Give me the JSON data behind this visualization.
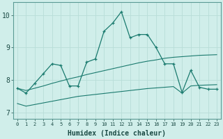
{
  "x": [
    0,
    1,
    2,
    3,
    4,
    5,
    6,
    7,
    8,
    9,
    10,
    11,
    12,
    13,
    14,
    15,
    16,
    17,
    18,
    19,
    20,
    21,
    22,
    23
  ],
  "y_main": [
    7.75,
    7.6,
    7.9,
    8.2,
    8.5,
    8.45,
    7.82,
    7.82,
    8.55,
    8.65,
    9.5,
    9.75,
    10.1,
    9.3,
    9.4,
    9.4,
    9.0,
    8.5,
    8.5,
    7.62,
    8.3,
    7.78,
    7.72,
    7.72
  ],
  "y_upper": [
    7.75,
    7.68,
    7.75,
    7.82,
    7.9,
    7.97,
    8.04,
    8.1,
    8.17,
    8.23,
    8.29,
    8.35,
    8.41,
    8.47,
    8.53,
    8.58,
    8.62,
    8.67,
    8.7,
    8.72,
    8.74,
    8.76,
    8.77,
    8.78
  ],
  "y_lower": [
    7.28,
    7.2,
    7.25,
    7.3,
    7.35,
    7.4,
    7.45,
    7.5,
    7.53,
    7.56,
    7.59,
    7.62,
    7.65,
    7.68,
    7.71,
    7.74,
    7.76,
    7.78,
    7.8,
    7.6,
    7.82,
    7.84,
    7.85,
    7.86
  ],
  "color_main": "#1a7a6e",
  "color_band": "#1a7a6e",
  "background_color": "#d0eeea",
  "grid_color": "#b8ddd8",
  "xlabel": "Humidex (Indice chaleur)",
  "ylim": [
    6.8,
    10.4
  ],
  "xlim": [
    -0.5,
    23.5
  ],
  "yticks": [
    7,
    8,
    9,
    10
  ],
  "xticks": [
    0,
    1,
    2,
    3,
    4,
    5,
    6,
    7,
    8,
    9,
    10,
    11,
    12,
    13,
    14,
    15,
    16,
    17,
    18,
    19,
    20,
    21,
    22,
    23
  ],
  "xlabel_fontsize": 7,
  "ytick_fontsize": 7,
  "xtick_fontsize": 5
}
